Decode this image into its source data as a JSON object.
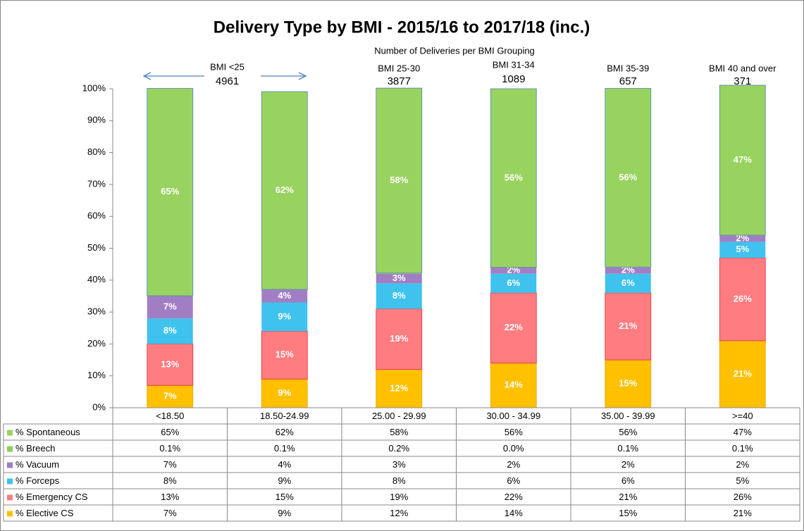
{
  "chart_data": {
    "type": "stacked_bar",
    "title": "Delivery Type by BMI - 2015/16 to 2017/18 (inc.)",
    "subtitle": "Number of Deliveries per BMI Grouping",
    "groups": [
      {
        "label": "BMI <25",
        "count": 4961
      },
      {
        "label": "BMI 25-30",
        "count": 3877
      },
      {
        "label": "BMI 31-34",
        "count": 1089
      },
      {
        "label": "BMI 35-39",
        "count": 657
      },
      {
        "label": "BMI 40 and over",
        "count": 371
      }
    ],
    "categories": [
      "<18.50",
      "18.50-24.99",
      "25.00 - 29.99",
      "30.00 - 34.99",
      "35.00 - 39.99",
      ">=40"
    ],
    "series": [
      {
        "name": "% Spontaneous",
        "color": "#99d35f",
        "values": [
          65,
          62,
          58,
          56,
          56,
          47
        ],
        "value_labels": [
          "65%",
          "62%",
          "58%",
          "56%",
          "56%",
          "47%"
        ],
        "show_labels": true
      },
      {
        "name": "% Breech",
        "color": "#8fce5a",
        "values": [
          0.1,
          0.1,
          0.2,
          0.0,
          0.1,
          0.1
        ],
        "value_labels": [
          "0.1%",
          "0.1%",
          "0.2%",
          "0.0%",
          "0.1%",
          "0.1%"
        ],
        "show_labels": false
      },
      {
        "name": "% Vacuum",
        "color": "#a17ec4",
        "values": [
          7,
          4,
          3,
          2,
          2,
          2
        ],
        "value_labels": [
          "7%",
          "4%",
          "3%",
          "2%",
          "2%",
          "2%"
        ],
        "show_labels": true
      },
      {
        "name": "% Forceps",
        "color": "#3fc2ee",
        "values": [
          8,
          9,
          8,
          6,
          6,
          5
        ],
        "value_labels": [
          "8%",
          "9%",
          "8%",
          "6%",
          "6%",
          "5%"
        ],
        "show_labels": true
      },
      {
        "name": "% Emergency CS",
        "color": "#ff7c80",
        "values": [
          13,
          15,
          19,
          22,
          21,
          26
        ],
        "value_labels": [
          "13%",
          "15%",
          "19%",
          "22%",
          "21%",
          "26%"
        ],
        "show_labels": true
      },
      {
        "name": "% Elective CS",
        "color": "#ffc000",
        "values": [
          7,
          9,
          12,
          14,
          15,
          21
        ],
        "value_labels": [
          "7%",
          "9%",
          "12%",
          "14%",
          "15%",
          "21%"
        ],
        "show_labels": true
      }
    ],
    "ylim": [
      0,
      100
    ],
    "yticks": [
      {
        "value": 0,
        "label": "0%"
      },
      {
        "value": 10,
        "label": "10%"
      },
      {
        "value": 20,
        "label": "20%"
      },
      {
        "value": 30,
        "label": "30%"
      },
      {
        "value": 40,
        "label": "40%"
      },
      {
        "value": 50,
        "label": "50%"
      },
      {
        "value": 60,
        "label": "60%"
      },
      {
        "value": 70,
        "label": "70%"
      },
      {
        "value": 80,
        "label": "80%"
      },
      {
        "value": 90,
        "label": "90%"
      },
      {
        "value": 100,
        "label": "100%"
      }
    ],
    "grid": false
  }
}
